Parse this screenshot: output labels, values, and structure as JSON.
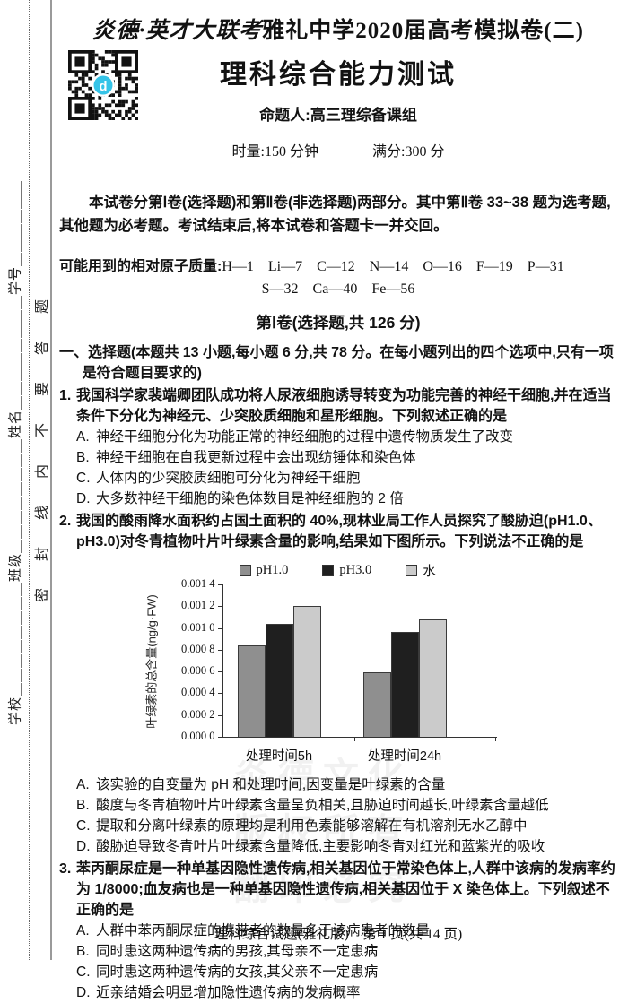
{
  "page": {
    "header_brand": "炎德·英才大联考",
    "header_rest": "雅礼中学2020届高考模拟卷(二)",
    "title": "理科综合能力测试",
    "setter": "命题人:高三理综备课组",
    "duration": "时量:150 分钟",
    "full_score": "满分:300 分",
    "intro": "本试卷分第Ⅰ卷(选择题)和第Ⅱ卷(非选择题)两部分。其中第Ⅱ卷 33~38 题为选考题,其他题为必考题。考试结束后,将本试卷和答题卡一并交回。",
    "atomic_mass_label": "可能用到的相对原子质量:",
    "atomic_mass_line1": "H—1　Li—7　C—12　N—14　O—16　F—19　P—31",
    "atomic_mass_line2": "S—32　Ca—40　Fe—56",
    "section_title": "第Ⅰ卷(选择题,共 126 分)",
    "section_instruction": "一、选择题(本题共 13 小题,每小题 6 分,共 78 分。在每小题列出的四个选项中,只有一项是符合题目要求的)",
    "footer": "理科综合试题(雅礼版)　第 1 页(共 14 页)",
    "watermark": "炎德文化\n版权所有\n翻印必究"
  },
  "margin": {
    "student_fields": "学校＿＿＿＿＿＿＿＿班级＿＿＿＿＿＿＿＿姓名＿＿＿＿＿＿＿＿学号＿＿＿＿＿＿",
    "seal_text": "密封线内不要答题"
  },
  "questions": [
    {
      "number": "1.",
      "stem": "我国科学家裴端卿团队成功将人尿液细胞诱导转变为功能完善的神经干细胞,并在适当条件下分化为神经元、少突胶质细胞和星形细胞。下列叙述正确的是",
      "has_chart": false,
      "options": [
        {
          "label": "A.",
          "text": "神经干细胞分化为功能正常的神经细胞的过程中遗传物质发生了改变"
        },
        {
          "label": "B.",
          "text": "神经干细胞在自我更新过程中会出现纺锤体和染色体"
        },
        {
          "label": "C.",
          "text": "人体内的少突胶质细胞可分化为神经干细胞"
        },
        {
          "label": "D.",
          "text": "大多数神经干细胞的染色体数目是神经细胞的 2 倍"
        }
      ]
    },
    {
      "number": "2.",
      "stem": "我国的酸雨降水面积约占国土面积的 40%,现林业局工作人员探究了酸胁迫(pH1.0、pH3.0)对冬青植物叶片叶绿素含量的影响,结果如下图所示。下列说法不正确的是",
      "has_chart": true,
      "options": [
        {
          "label": "A.",
          "text": "该实验的自变量为 pH 和处理时间,因变量是叶绿素的含量"
        },
        {
          "label": "B.",
          "text": "酸度与冬青植物叶片叶绿素含量呈负相关,且胁迫时间越长,叶绿素含量越低"
        },
        {
          "label": "C.",
          "text": "提取和分离叶绿素的原理均是利用色素能够溶解在有机溶剂无水乙醇中"
        },
        {
          "label": "D.",
          "text": "酸胁迫导致冬青叶片叶绿素含量降低,主要影响冬青对红光和蓝紫光的吸收"
        }
      ]
    },
    {
      "number": "3.",
      "stem": "苯丙酮尿症是一种单基因隐性遗传病,相关基因位于常染色体上,人群中该病的发病率约为 1/8000;血友病也是一种单基因隐性遗传病,相关基因位于 X 染色体上。下列叙述不正确的是",
      "has_chart": false,
      "options": [
        {
          "label": "A.",
          "text": "人群中苯丙酮尿症的携带者的数量多于该病患者的数量"
        },
        {
          "label": "B.",
          "text": "同时患这两种遗传病的男孩,其母亲不一定患病"
        },
        {
          "label": "C.",
          "text": "同时患这两种遗传病的女孩,其父亲不一定患病"
        },
        {
          "label": "D.",
          "text": "近亲结婚会明显增加隐性遗传病的发病概率"
        }
      ]
    }
  ],
  "chart_data": {
    "type": "bar",
    "categories": [
      "处理时间5h",
      "处理时间24h"
    ],
    "series": [
      {
        "name": "pH1.0",
        "color": "#8f8f8f",
        "values": [
          0.00084,
          0.00059
        ]
      },
      {
        "name": "pH3.0",
        "color": "#1f1f1f",
        "values": [
          0.00104,
          0.00096
        ]
      },
      {
        "name": "水",
        "color": "#cbcbcb",
        "values": [
          0.0012,
          0.00108
        ]
      }
    ],
    "title": "",
    "xlabel": "",
    "ylabel": "叶绿素的总含量(ng/g·FW)",
    "ylim": [
      0,
      0.0014
    ],
    "ytick_step": 0.0002,
    "ytick_labels": [
      "0.000 0",
      "0.000 2",
      "0.000 4",
      "0.000 6",
      "0.000 8",
      "0.001 0",
      "0.001 2",
      "0.001 4"
    ],
    "legend_position": "top",
    "grid": false
  },
  "icons": {
    "qr_code": "qr-code",
    "qr_logo_color": "#35c4e8"
  }
}
